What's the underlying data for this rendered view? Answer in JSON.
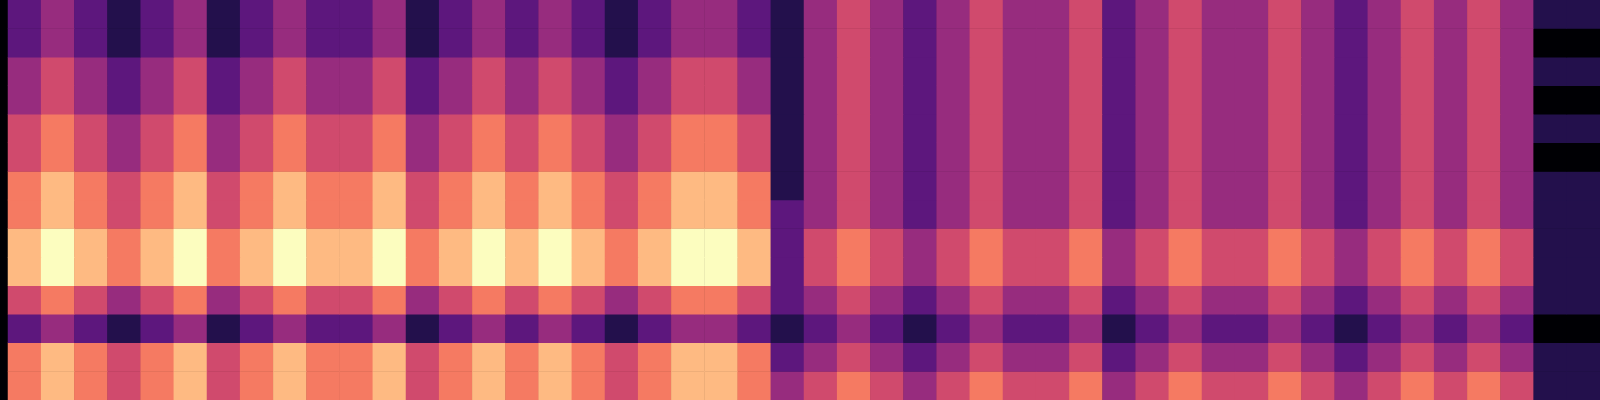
{
  "chart_data": {
    "type": "heatmap",
    "color": "magma",
    "tick_labels": false,
    "values": [
      [
        5,
        6,
        5,
        4,
        5,
        6,
        4,
        5,
        6,
        5,
        5,
        6,
        4,
        5,
        6,
        5,
        6,
        5,
        4,
        5,
        6,
        6,
        5,
        3,
        4,
        5,
        4,
        3,
        4,
        5,
        4,
        4,
        5,
        3,
        4,
        5,
        4,
        4,
        5,
        4,
        3,
        4,
        5,
        4,
        5,
        4,
        1,
        1
      ],
      [
        5,
        6,
        5,
        4,
        5,
        6,
        4,
        5,
        6,
        5,
        5,
        6,
        4,
        5,
        6,
        5,
        6,
        5,
        4,
        5,
        6,
        6,
        5,
        2,
        3,
        4,
        3,
        2,
        3,
        4,
        3,
        3,
        4,
        2,
        3,
        4,
        3,
        3,
        4,
        3,
        2,
        3,
        4,
        3,
        4,
        3,
        1,
        1
      ],
      [
        2,
        3,
        2,
        1,
        2,
        3,
        1,
        2,
        3,
        2,
        2,
        3,
        1,
        2,
        3,
        2,
        3,
        2,
        1,
        2,
        3,
        3,
        2,
        1,
        2,
        3,
        2,
        1,
        2,
        3,
        2,
        2,
        3,
        1,
        2,
        3,
        2,
        2,
        3,
        2,
        1,
        2,
        3,
        2,
        3,
        2,
        0,
        0
      ],
      [
        4,
        5,
        4,
        3,
        4,
        5,
        3,
        4,
        5,
        4,
        4,
        5,
        3,
        4,
        5,
        4,
        5,
        4,
        3,
        4,
        5,
        5,
        4,
        2,
        3,
        4,
        3,
        2,
        3,
        4,
        3,
        3,
        4,
        2,
        3,
        4,
        3,
        3,
        4,
        3,
        2,
        3,
        4,
        3,
        4,
        3,
        1,
        1
      ],
      [
        6,
        7,
        6,
        5,
        6,
        7,
        5,
        6,
        7,
        6,
        6,
        7,
        5,
        6,
        7,
        6,
        7,
        6,
        5,
        6,
        7,
        7,
        6,
        2,
        4,
        5,
        4,
        3,
        4,
        5,
        4,
        4,
        5,
        3,
        4,
        5,
        4,
        4,
        5,
        4,
        3,
        4,
        5,
        4,
        5,
        4,
        1,
        1
      ],
      [
        6,
        7,
        6,
        5,
        6,
        7,
        5,
        6,
        7,
        6,
        6,
        7,
        5,
        6,
        7,
        6,
        7,
        6,
        5,
        6,
        7,
        7,
        6,
        2,
        4,
        5,
        4,
        3,
        4,
        5,
        4,
        4,
        5,
        3,
        4,
        5,
        4,
        4,
        5,
        4,
        3,
        4,
        5,
        4,
        5,
        4,
        1,
        1
      ],
      [
        5,
        6,
        5,
        4,
        5,
        6,
        4,
        5,
        6,
        5,
        5,
        6,
        4,
        5,
        6,
        5,
        6,
        5,
        4,
        5,
        6,
        6,
        5,
        2,
        3,
        4,
        3,
        2,
        3,
        4,
        3,
        3,
        4,
        2,
        3,
        4,
        3,
        3,
        4,
        3,
        2,
        3,
        4,
        3,
        4,
        3,
        1,
        1
      ],
      [
        5,
        6,
        5,
        4,
        5,
        6,
        4,
        5,
        6,
        5,
        5,
        6,
        4,
        5,
        6,
        5,
        6,
        5,
        4,
        5,
        6,
        6,
        5,
        1,
        3,
        4,
        3,
        2,
        3,
        4,
        3,
        3,
        4,
        2,
        3,
        4,
        3,
        3,
        4,
        3,
        2,
        3,
        4,
        3,
        4,
        3,
        1,
        1
      ],
      [
        4,
        5,
        4,
        3,
        4,
        5,
        3,
        4,
        5,
        4,
        4,
        5,
        3,
        4,
        5,
        4,
        5,
        4,
        3,
        4,
        5,
        5,
        4,
        1,
        3,
        4,
        3,
        2,
        3,
        4,
        3,
        3,
        4,
        2,
        3,
        4,
        3,
        3,
        4,
        3,
        2,
        3,
        4,
        3,
        4,
        3,
        0,
        0
      ],
      [
        4,
        5,
        4,
        3,
        4,
        5,
        3,
        4,
        5,
        4,
        4,
        5,
        3,
        4,
        5,
        4,
        5,
        4,
        3,
        4,
        5,
        5,
        4,
        1,
        3,
        4,
        3,
        2,
        3,
        4,
        3,
        3,
        4,
        2,
        3,
        4,
        3,
        3,
        4,
        3,
        2,
        3,
        4,
        3,
        4,
        3,
        1,
        1
      ],
      [
        3,
        4,
        3,
        2,
        3,
        4,
        2,
        3,
        4,
        3,
        3,
        4,
        2,
        3,
        4,
        3,
        4,
        3,
        2,
        3,
        4,
        4,
        3,
        1,
        3,
        4,
        3,
        2,
        3,
        4,
        3,
        3,
        4,
        2,
        3,
        4,
        3,
        3,
        4,
        3,
        2,
        3,
        4,
        3,
        4,
        3,
        0,
        0
      ],
      [
        3,
        4,
        3,
        2,
        3,
        4,
        2,
        3,
        4,
        3,
        3,
        4,
        2,
        3,
        4,
        3,
        4,
        3,
        2,
        3,
        4,
        4,
        3,
        1,
        3,
        4,
        3,
        2,
        3,
        4,
        3,
        3,
        4,
        2,
        3,
        4,
        3,
        3,
        4,
        3,
        2,
        3,
        4,
        3,
        4,
        3,
        1,
        1
      ],
      [
        2,
        3,
        2,
        1,
        2,
        3,
        1,
        2,
        3,
        2,
        2,
        3,
        1,
        2,
        3,
        2,
        3,
        2,
        1,
        2,
        3,
        3,
        2,
        1,
        3,
        4,
        3,
        2,
        3,
        4,
        3,
        3,
        4,
        2,
        3,
        4,
        3,
        3,
        4,
        3,
        2,
        3,
        4,
        3,
        4,
        3,
        0,
        0
      ],
      [
        2,
        3,
        2,
        1,
        2,
        3,
        1,
        2,
        3,
        2,
        2,
        3,
        1,
        2,
        3,
        2,
        3,
        2,
        1,
        2,
        3,
        3,
        2,
        1,
        3,
        4,
        3,
        2,
        3,
        4,
        3,
        3,
        4,
        2,
        3,
        4,
        3,
        3,
        4,
        3,
        2,
        3,
        4,
        3,
        4,
        3,
        1,
        1
      ]
    ]
  }
}
